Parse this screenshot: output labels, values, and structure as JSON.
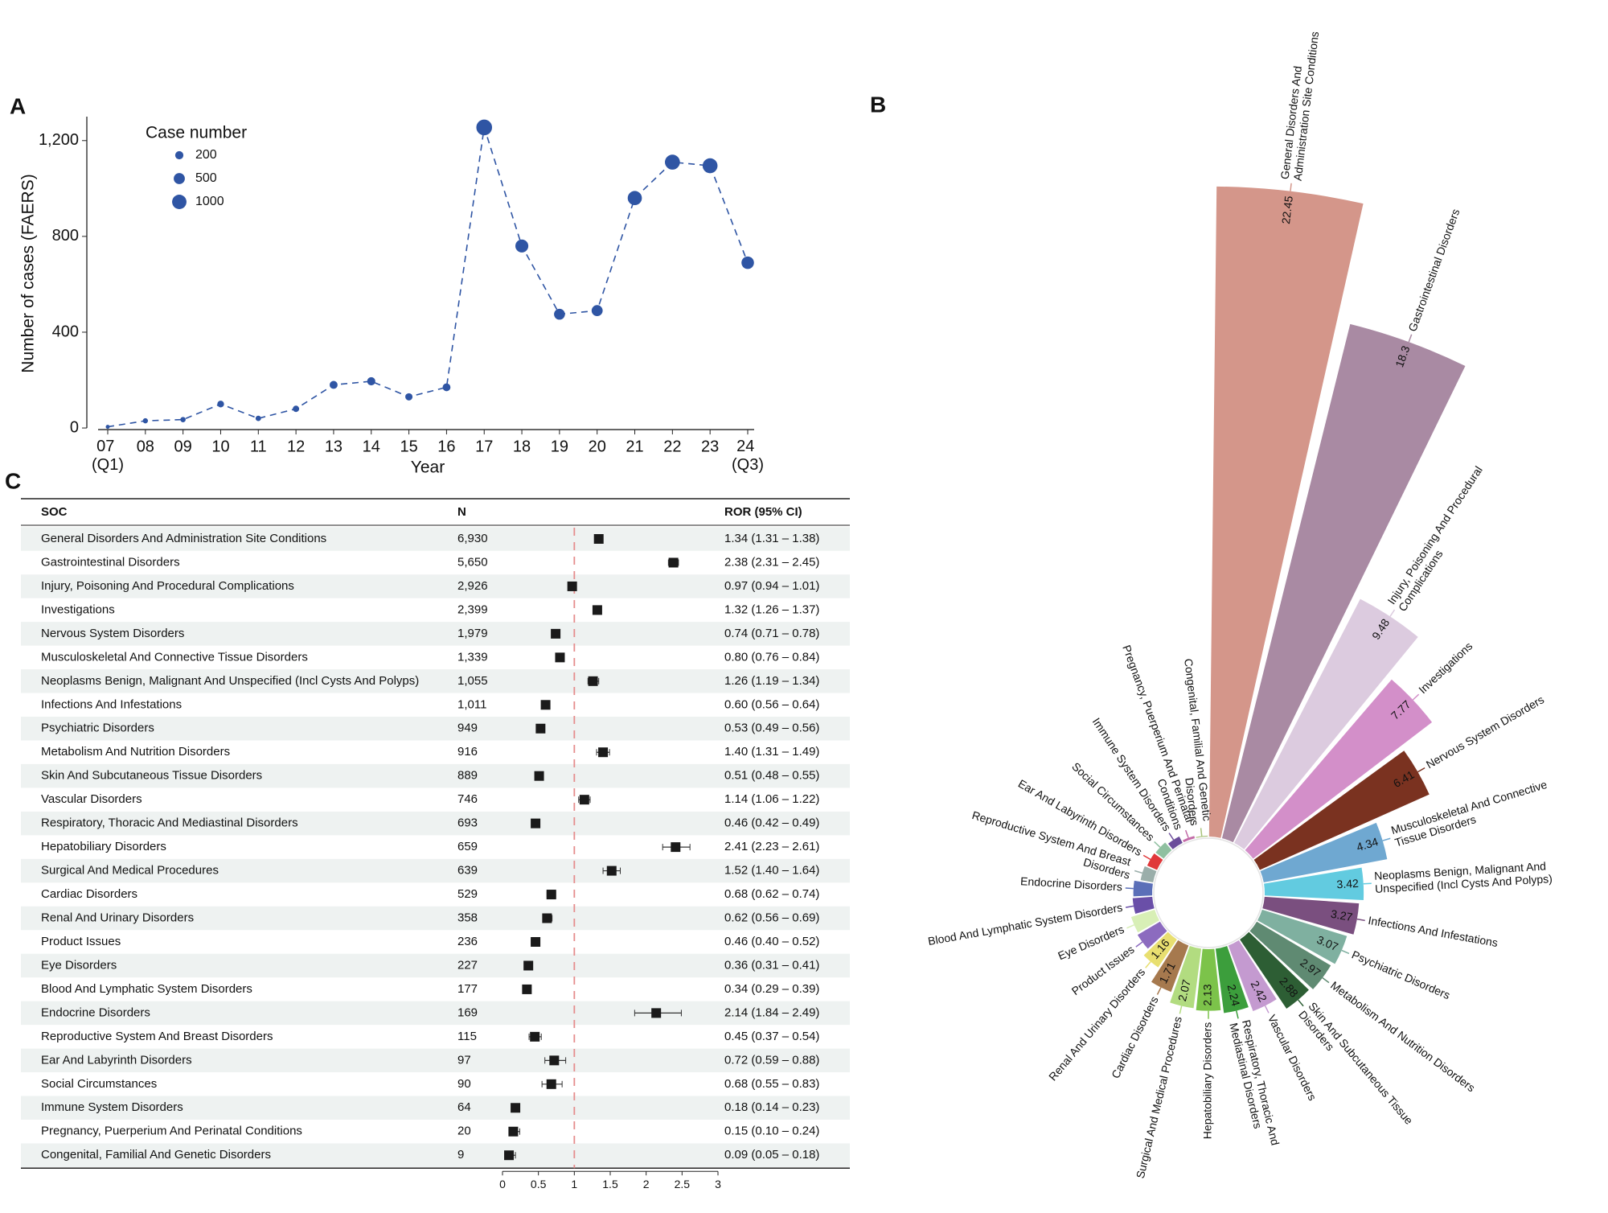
{
  "chart_data": [
    {
      "panel": "A",
      "type": "line",
      "y_label": "Number of cases (FAERS)",
      "x_label": "Year",
      "categories": [
        "07 (Q1)",
        "08",
        "09",
        "10",
        "11",
        "12",
        "13",
        "14",
        "15",
        "16",
        "17",
        "18",
        "19",
        "20",
        "21",
        "22",
        "23",
        "24 (Q3)"
      ],
      "series": [
        {
          "color": "#2f55a4",
          "values": [
            5,
            30,
            35,
            100,
            40,
            80,
            180,
            195,
            130,
            170,
            1255,
            760,
            475,
            490,
            960,
            1110,
            1095,
            690
          ]
        }
      ],
      "ylim": [
        -30,
        1300
      ],
      "yticks": [
        0,
        400,
        800,
        {
          "value": 1200,
          "label": "1,200"
        }
      ],
      "size_legend": {
        "title": "Case number",
        "values": [
          200,
          500,
          1000
        ]
      }
    },
    {
      "panel": "B",
      "type": "radial_bar",
      "categories": [
        "General Disorders And Administration Site Conditions",
        "Gastrointestinal Disorders",
        "Injury, Poisoning And Procedural Complications",
        "Investigations",
        "Nervous System Disorders",
        "Musculoskeletal And Connective Tissue Disorders",
        "Neoplasms Benign, Malignant And Unspecified (Incl Cysts And Polyps)",
        "Infections And Infestations",
        "Psychiatric Disorders",
        "Metabolism And Nutrition Disorders",
        "Skin And Subcutaneous Tissue Disorders",
        "Vascular Disorders",
        "Respiratory, Thoracic And Mediastinal Disorders",
        "Hepatobiliary Disorders",
        "Surgical And Medical Procedures",
        "Cardiac Disorders",
        "Renal And Urinary Disorders",
        "Product Issues",
        "Eye Disorders",
        "Blood And Lymphatic System Disorders",
        "Endocrine Disorders",
        "Reproductive System And Breast Disorders",
        "Ear And Labyrinth Disorders",
        "Social Circumstances",
        "Immune System Disorders",
        "Pregnancy, Puerperium And Perinatal Conditions",
        "Congenital, Familial And Genetic Disorders"
      ],
      "values": [
        22.45,
        18.3,
        9.48,
        7.77,
        6.41,
        4.34,
        3.42,
        3.27,
        3.07,
        2.97,
        2.88,
        2.42,
        2.24,
        2.13,
        2.07,
        1.71,
        1.16,
        0.9,
        0.85,
        0.68,
        0.65,
        0.44,
        0.37,
        0.35,
        0.25,
        0.08,
        0.03
      ],
      "colors": [
        "#d4968a",
        "#a98aa3",
        "#dccbdf",
        "#d38fc9",
        "#7a3220",
        "#6fa8d1",
        "#62cbe0",
        "#7a4f7f",
        "#7fb0a0",
        "#5f8a72",
        "#2d5e34",
        "#c49ad0",
        "#3c9e3c",
        "#7cc34a",
        "#b2dc80",
        "#a6794e",
        "#e8df70",
        "#8c6bbf",
        "#d8efb6",
        "#6a4fa8",
        "#5b6fb8",
        "#9aaeaa",
        "#e0383a",
        "#8fc0a0",
        "#6b4c9a",
        "#c36ca8",
        "#a8c27a"
      ]
    },
    {
      "panel": "C",
      "type": "forest",
      "columns": [
        "SOC",
        "N",
        "ROR (95% CI)"
      ],
      "signal_color": "#e3262b",
      "reference": 1,
      "xlim": [
        0,
        3
      ],
      "xticks": [
        0,
        0.5,
        1,
        1.5,
        2,
        2.5,
        3
      ],
      "rows": [
        {
          "soc": "General Disorders And Administration Site Conditions",
          "n": "6,930",
          "ror": 1.34,
          "lower": 1.31,
          "upper": 1.38,
          "label": "1.34 (1.31 – 1.38)",
          "signal": true
        },
        {
          "soc": "Gastrointestinal Disorders",
          "n": "5,650",
          "ror": 2.38,
          "lower": 2.31,
          "upper": 2.45,
          "label": "2.38 (2.31 – 2.45)",
          "signal": true
        },
        {
          "soc": "Injury, Poisoning And Procedural Complications",
          "n": "2,926",
          "ror": 0.97,
          "lower": 0.94,
          "upper": 1.01,
          "label": "0.97 (0.94 – 1.01)",
          "signal": false
        },
        {
          "soc": "Investigations",
          "n": "2,399",
          "ror": 1.32,
          "lower": 1.26,
          "upper": 1.37,
          "label": "1.32 (1.26 – 1.37)",
          "signal": true
        },
        {
          "soc": "Nervous System Disorders",
          "n": "1,979",
          "ror": 0.74,
          "lower": 0.71,
          "upper": 0.78,
          "label": "0.74 (0.71 – 0.78)",
          "signal": false
        },
        {
          "soc": "Musculoskeletal And Connective Tissue Disorders",
          "n": "1,339",
          "ror": 0.8,
          "lower": 0.76,
          "upper": 0.84,
          "label": "0.80 (0.76 – 0.84)",
          "signal": false
        },
        {
          "soc": "Neoplasms Benign, Malignant And Unspecified (Incl Cysts And Polyps)",
          "n": "1,055",
          "ror": 1.26,
          "lower": 1.19,
          "upper": 1.34,
          "label": "1.26 (1.19 – 1.34)",
          "signal": true
        },
        {
          "soc": "Infections And Infestations",
          "n": "1,011",
          "ror": 0.6,
          "lower": 0.56,
          "upper": 0.64,
          "label": "0.60 (0.56 – 0.64)",
          "signal": false
        },
        {
          "soc": "Psychiatric Disorders",
          "n": "949",
          "ror": 0.53,
          "lower": 0.49,
          "upper": 0.56,
          "label": "0.53 (0.49 – 0.56)",
          "signal": false
        },
        {
          "soc": "Metabolism And Nutrition Disorders",
          "n": "916",
          "ror": 1.4,
          "lower": 1.31,
          "upper": 1.49,
          "label": "1.40 (1.31 – 1.49)",
          "signal": true
        },
        {
          "soc": "Skin And Subcutaneous Tissue Disorders",
          "n": "889",
          "ror": 0.51,
          "lower": 0.48,
          "upper": 0.55,
          "label": "0.51 (0.48 – 0.55)",
          "signal": false
        },
        {
          "soc": "Vascular Disorders",
          "n": "746",
          "ror": 1.14,
          "lower": 1.06,
          "upper": 1.22,
          "label": "1.14 (1.06 – 1.22)",
          "signal": true
        },
        {
          "soc": "Respiratory, Thoracic And Mediastinal Disorders",
          "n": "693",
          "ror": 0.46,
          "lower": 0.42,
          "upper": 0.49,
          "label": "0.46 (0.42 – 0.49)",
          "signal": false
        },
        {
          "soc": "Hepatobiliary Disorders",
          "n": "659",
          "ror": 2.41,
          "lower": 2.23,
          "upper": 2.61,
          "label": "2.41 (2.23 – 2.61)",
          "signal": true
        },
        {
          "soc": "Surgical And Medical Procedures",
          "n": "639",
          "ror": 1.52,
          "lower": 1.4,
          "upper": 1.64,
          "label": "1.52 (1.40 – 1.64)",
          "signal": true
        },
        {
          "soc": "Cardiac Disorders",
          "n": "529",
          "ror": 0.68,
          "lower": 0.62,
          "upper": 0.74,
          "label": "0.68 (0.62 – 0.74)",
          "signal": false
        },
        {
          "soc": "Renal And Urinary Disorders",
          "n": "358",
          "ror": 0.62,
          "lower": 0.56,
          "upper": 0.69,
          "label": "0.62 (0.56 – 0.69)",
          "signal": false
        },
        {
          "soc": "Product Issues",
          "n": "236",
          "ror": 0.46,
          "lower": 0.4,
          "upper": 0.52,
          "label": "0.46 (0.40 – 0.52)",
          "signal": false
        },
        {
          "soc": "Eye Disorders",
          "n": "227",
          "ror": 0.36,
          "lower": 0.31,
          "upper": 0.41,
          "label": "0.36 (0.31 – 0.41)",
          "signal": false
        },
        {
          "soc": "Blood And Lymphatic System Disorders",
          "n": "177",
          "ror": 0.34,
          "lower": 0.29,
          "upper": 0.39,
          "label": "0.34 (0.29 – 0.39)",
          "signal": false
        },
        {
          "soc": "Endocrine Disorders",
          "n": "169",
          "ror": 2.14,
          "lower": 1.84,
          "upper": 2.49,
          "label": "2.14 (1.84 – 2.49)",
          "signal": true
        },
        {
          "soc": "Reproductive System And Breast Disorders",
          "n": "115",
          "ror": 0.45,
          "lower": 0.37,
          "upper": 0.54,
          "label": "0.45 (0.37 – 0.54)",
          "signal": false
        },
        {
          "soc": "Ear And Labyrinth Disorders",
          "n": "97",
          "ror": 0.72,
          "lower": 0.59,
          "upper": 0.88,
          "label": "0.72 (0.59 – 0.88)",
          "signal": false
        },
        {
          "soc": "Social Circumstances",
          "n": "90",
          "ror": 0.68,
          "lower": 0.55,
          "upper": 0.83,
          "label": "0.68 (0.55 – 0.83)",
          "signal": false
        },
        {
          "soc": "Immune System Disorders",
          "n": "64",
          "ror": 0.18,
          "lower": 0.14,
          "upper": 0.23,
          "label": "0.18 (0.14 – 0.23)",
          "signal": false
        },
        {
          "soc": "Pregnancy, Puerperium And Perinatal Conditions",
          "n": "20",
          "ror": 0.15,
          "lower": 0.1,
          "upper": 0.24,
          "label": "0.15 (0.10 – 0.24)",
          "signal": false
        },
        {
          "soc": "Congenital, Familial And Genetic Disorders",
          "n": "9",
          "ror": 0.09,
          "lower": 0.05,
          "upper": 0.18,
          "label": "0.09 (0.05 – 0.18)",
          "signal": false
        }
      ]
    }
  ]
}
